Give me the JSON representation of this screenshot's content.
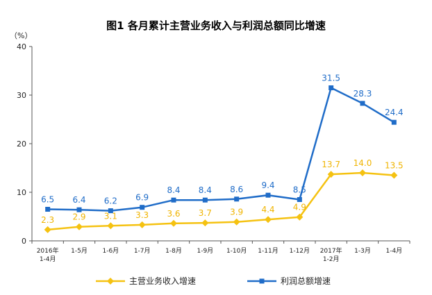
{
  "chart_data": {
    "type": "line",
    "title": "图1  各月累计主营业务收入与利润总额同比增速",
    "ylabel": "（%）",
    "xlabel": "",
    "ylim": [
      0,
      40
    ],
    "yticks": [
      "0",
      "10",
      "20",
      "30",
      "40"
    ],
    "grid": false,
    "legend_position": "bottom",
    "categories": [
      [
        "2016年",
        "1-4月"
      ],
      [
        "1-5月"
      ],
      [
        "1-6月"
      ],
      [
        "1-7月"
      ],
      [
        "1-8月"
      ],
      [
        "1-9月"
      ],
      [
        "1-10月"
      ],
      [
        "1-11月"
      ],
      [
        "1-12月"
      ],
      [
        "2017年",
        "1-2月"
      ],
      [
        "1-3月"
      ],
      [
        "1-4月"
      ]
    ],
    "series": [
      {
        "name": "主营业务收入增速",
        "color": "#f5c211",
        "label_color": "#f0b400",
        "marker": "diamond",
        "values": [
          2.3,
          2.9,
          3.1,
          3.3,
          3.6,
          3.7,
          3.9,
          4.4,
          4.9,
          13.7,
          14.0,
          13.5
        ],
        "labels": [
          "2.3",
          "2.9",
          "3.1",
          "3.3",
          "3.6",
          "3.7",
          "3.9",
          "4.4",
          "4.9",
          "13.7",
          "14.0",
          "13.5"
        ]
      },
      {
        "name": "利润总额增速",
        "color": "#1f6cc8",
        "label_color": "#1f6cc8",
        "marker": "square",
        "values": [
          6.5,
          6.4,
          6.2,
          6.9,
          8.4,
          8.4,
          8.6,
          9.4,
          8.5,
          31.5,
          28.3,
          24.4
        ],
        "labels": [
          "6.5",
          "6.4",
          "6.2",
          "6.9",
          "8.4",
          "8.4",
          "8.6",
          "9.4",
          "8.5",
          "31.5",
          "28.3",
          "24.4"
        ]
      }
    ]
  }
}
